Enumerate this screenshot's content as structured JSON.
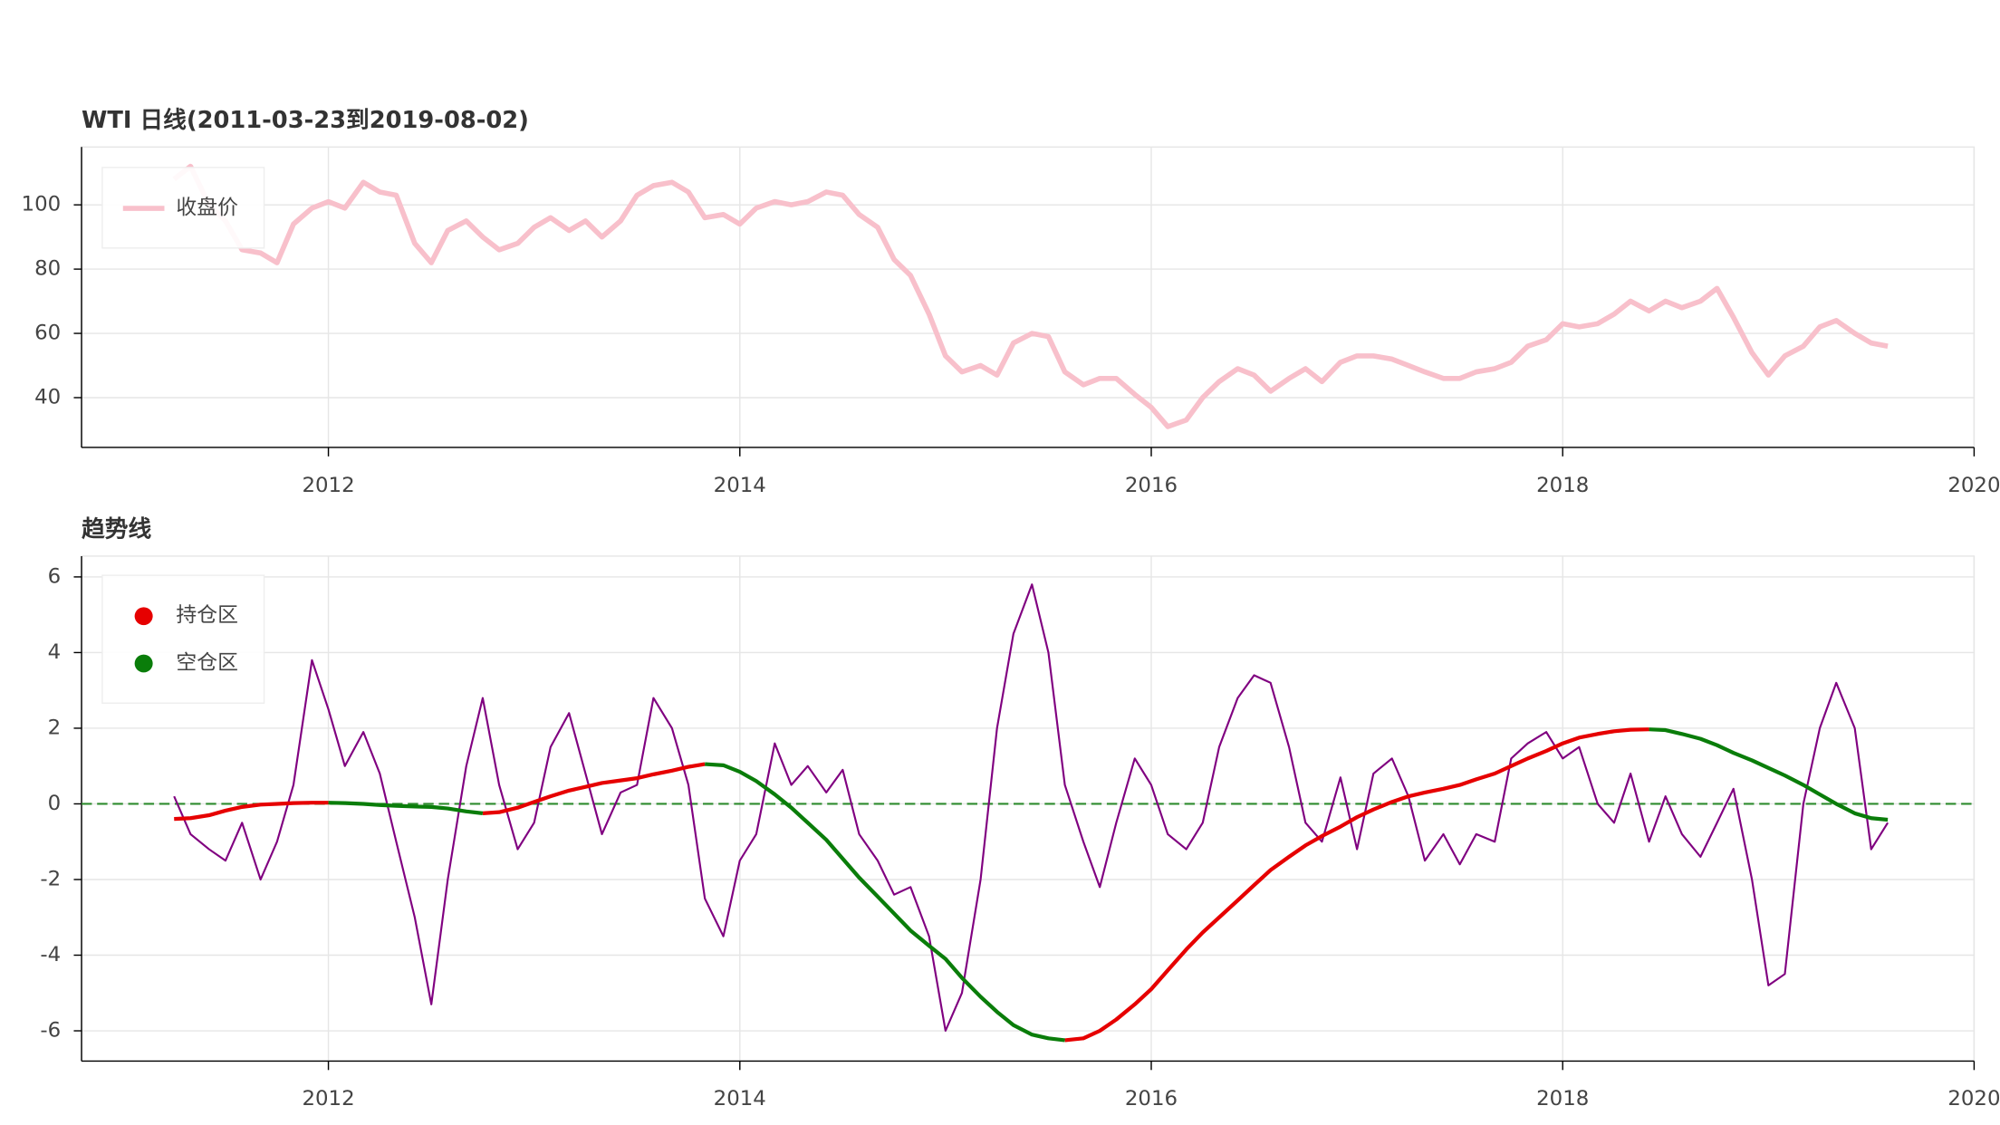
{
  "chart_data": [
    {
      "type": "line",
      "title": "WTI   日线(2011-03-23到2019-08-02)",
      "x": [
        2011.25,
        2011.33,
        2011.42,
        2011.5,
        2011.58,
        2011.67,
        2011.75,
        2011.83,
        2011.92,
        2012.0,
        2012.08,
        2012.17,
        2012.25,
        2012.33,
        2012.42,
        2012.5,
        2012.58,
        2012.67,
        2012.75,
        2012.83,
        2012.92,
        2013.0,
        2013.08,
        2013.17,
        2013.25,
        2013.33,
        2013.42,
        2013.5,
        2013.58,
        2013.67,
        2013.75,
        2013.83,
        2013.92,
        2014.0,
        2014.08,
        2014.17,
        2014.25,
        2014.33,
        2014.42,
        2014.5,
        2014.58,
        2014.67,
        2014.75,
        2014.83,
        2014.92,
        2015.0,
        2015.08,
        2015.17,
        2015.25,
        2015.33,
        2015.42,
        2015.5,
        2015.58,
        2015.67,
        2015.75,
        2015.83,
        2015.92,
        2016.0,
        2016.08,
        2016.17,
        2016.25,
        2016.33,
        2016.42,
        2016.5,
        2016.58,
        2016.67,
        2016.75,
        2016.83,
        2016.92,
        2017.0,
        2017.08,
        2017.17,
        2017.25,
        2017.33,
        2017.42,
        2017.5,
        2017.58,
        2017.67,
        2017.75,
        2017.83,
        2017.92,
        2018.0,
        2018.08,
        2018.17,
        2018.25,
        2018.33,
        2018.42,
        2018.5,
        2018.58,
        2018.67,
        2018.75,
        2018.83,
        2018.92,
        2019.0,
        2019.08,
        2019.17,
        2019.25,
        2019.33,
        2019.42,
        2019.5,
        2019.58
      ],
      "series": [
        {
          "name": "收盘价",
          "color": "#f8c0cb",
          "values": [
            108,
            112,
            100,
            95,
            86,
            85,
            82,
            94,
            99,
            101,
            99,
            107,
            104,
            103,
            88,
            82,
            92,
            95,
            90,
            86,
            88,
            93,
            96,
            92,
            95,
            90,
            95,
            103,
            106,
            107,
            104,
            96,
            97,
            94,
            99,
            101,
            100,
            101,
            104,
            103,
            97,
            93,
            83,
            78,
            66,
            53,
            48,
            50,
            47,
            57,
            60,
            59,
            48,
            44,
            46,
            46,
            41,
            37,
            31,
            33,
            40,
            45,
            49,
            47,
            42,
            46,
            49,
            45,
            51,
            53,
            53,
            52,
            50,
            48,
            46,
            46,
            48,
            49,
            51,
            56,
            58,
            63,
            62,
            63,
            66,
            70,
            67,
            70,
            68,
            70,
            74,
            65,
            54,
            47,
            53,
            56,
            62,
            64,
            60,
            57,
            56
          ]
        }
      ],
      "legend_marker": "line",
      "xlim": [
        2010.8,
        2020.0
      ],
      "xticks": [
        2012,
        2014,
        2016,
        2018,
        2020
      ],
      "ylim": [
        24.5,
        118
      ],
      "yticks": [
        40,
        60,
        80,
        100
      ],
      "grid": true
    },
    {
      "type": "line",
      "title": "趋势线",
      "x": [
        2011.25,
        2011.33,
        2011.42,
        2011.5,
        2011.58,
        2011.67,
        2011.75,
        2011.83,
        2011.92,
        2012.0,
        2012.08,
        2012.17,
        2012.25,
        2012.33,
        2012.42,
        2012.5,
        2012.58,
        2012.67,
        2012.75,
        2012.83,
        2012.92,
        2013.0,
        2013.08,
        2013.17,
        2013.25,
        2013.33,
        2013.42,
        2013.5,
        2013.58,
        2013.67,
        2013.75,
        2013.83,
        2013.92,
        2014.0,
        2014.08,
        2014.17,
        2014.25,
        2014.33,
        2014.42,
        2014.5,
        2014.58,
        2014.67,
        2014.75,
        2014.83,
        2014.92,
        2015.0,
        2015.08,
        2015.17,
        2015.25,
        2015.33,
        2015.42,
        2015.5,
        2015.58,
        2015.67,
        2015.75,
        2015.83,
        2015.92,
        2016.0,
        2016.08,
        2016.17,
        2016.25,
        2016.33,
        2016.42,
        2016.5,
        2016.58,
        2016.67,
        2016.75,
        2016.83,
        2016.92,
        2017.0,
        2017.08,
        2017.17,
        2017.25,
        2017.33,
        2017.42,
        2017.5,
        2017.58,
        2017.67,
        2017.75,
        2017.83,
        2017.92,
        2018.0,
        2018.08,
        2018.17,
        2018.25,
        2018.33,
        2018.42,
        2018.5,
        2018.58,
        2018.67,
        2018.75,
        2018.83,
        2018.92,
        2019.0,
        2019.08,
        2019.17,
        2019.25,
        2019.33,
        2019.42,
        2019.5,
        2019.58
      ],
      "series": [
        {
          "color": "#800080",
          "width": 1.5,
          "values": [
            0.2,
            -0.8,
            -1.2,
            -1.5,
            -0.5,
            -2.0,
            -1.0,
            0.5,
            3.8,
            2.5,
            1.0,
            1.9,
            0.8,
            -1.0,
            -3.0,
            -5.3,
            -2.0,
            1.0,
            2.8,
            0.5,
            -1.2,
            -0.5,
            1.5,
            2.4,
            0.8,
            -0.8,
            0.3,
            0.5,
            2.8,
            2.0,
            0.5,
            -2.5,
            -3.5,
            -1.5,
            -0.8,
            1.6,
            0.5,
            1.0,
            0.3,
            0.9,
            -0.8,
            -1.5,
            -2.4,
            -2.2,
            -3.5,
            -6.0,
            -5.0,
            -2.0,
            2.0,
            4.5,
            5.8,
            4.0,
            0.5,
            -1.0,
            -2.2,
            -0.5,
            1.2,
            0.5,
            -0.8,
            -1.2,
            -0.5,
            1.5,
            2.8,
            3.4,
            3.2,
            1.5,
            -0.5,
            -1.0,
            0.7,
            -1.2,
            0.8,
            1.2,
            0.2,
            -1.5,
            -0.8,
            -1.6,
            -0.8,
            -1.0,
            1.2,
            1.6,
            1.9,
            1.2,
            1.5,
            0.0,
            -0.5,
            0.8,
            -1.0,
            0.2,
            -0.8,
            -1.4,
            -0.5,
            0.4,
            -2.0,
            -4.8,
            -4.5,
            0.0,
            2.0,
            3.2,
            2.0,
            -1.2,
            -0.5
          ]
        },
        {
          "name": "持仓区",
          "color": "#e60000",
          "width": 3,
          "values": [
            -0.4,
            -0.38,
            -0.3,
            -0.18,
            -0.08,
            -0.02,
            0.0,
            0.02,
            0.03,
            0.03,
            null,
            null,
            null,
            null,
            null,
            null,
            null,
            null,
            -0.25,
            -0.22,
            -0.1,
            0.05,
            0.2,
            0.35,
            0.45,
            0.55,
            0.62,
            0.68,
            0.78,
            0.88,
            0.98,
            1.05,
            null,
            null,
            null,
            null,
            null,
            null,
            null,
            null,
            null,
            null,
            null,
            null,
            null,
            null,
            null,
            null,
            null,
            null,
            null,
            null,
            -6.25,
            -6.2,
            -6.0,
            -5.7,
            -5.3,
            -4.9,
            -4.4,
            -3.85,
            -3.4,
            -3.0,
            -2.55,
            -2.15,
            -1.75,
            -1.4,
            -1.1,
            -0.85,
            -0.6,
            -0.35,
            -0.15,
            0.05,
            0.2,
            0.3,
            0.4,
            0.5,
            0.65,
            0.8,
            1.0,
            1.2,
            1.4,
            1.6,
            1.75,
            1.85,
            1.92,
            1.96,
            1.97,
            null,
            null,
            null,
            null,
            null,
            null,
            null,
            null,
            null,
            null,
            null,
            null,
            null,
            null
          ]
        },
        {
          "name": "空仓区",
          "color": "#0a7d0a",
          "width": 3,
          "values": [
            null,
            null,
            null,
            null,
            null,
            null,
            null,
            null,
            null,
            0.03,
            0.02,
            0.0,
            -0.03,
            -0.05,
            -0.07,
            -0.08,
            -0.12,
            -0.2,
            -0.25,
            null,
            null,
            null,
            null,
            null,
            null,
            null,
            null,
            null,
            null,
            null,
            null,
            1.05,
            1.02,
            0.85,
            0.6,
            0.25,
            -0.1,
            -0.5,
            -0.95,
            -1.45,
            -1.95,
            -2.45,
            -2.9,
            -3.35,
            -3.75,
            -4.1,
            -4.6,
            -5.1,
            -5.5,
            -5.85,
            -6.1,
            -6.2,
            -6.25,
            null,
            null,
            null,
            null,
            null,
            null,
            null,
            null,
            null,
            null,
            null,
            null,
            null,
            null,
            null,
            null,
            null,
            null,
            null,
            null,
            null,
            null,
            null,
            null,
            null,
            null,
            null,
            null,
            null,
            null,
            null,
            null,
            null,
            1.97,
            1.95,
            1.85,
            1.72,
            1.55,
            1.35,
            1.15,
            0.95,
            0.75,
            0.5,
            0.25,
            0.0,
            -0.25,
            -0.38,
            -0.42
          ]
        }
      ],
      "hline": {
        "value": 0,
        "color": "#2e8b2e"
      },
      "legend_marker": "circle",
      "xlim": [
        2010.8,
        2020.0
      ],
      "xticks": [
        2012,
        2014,
        2016,
        2018,
        2020
      ],
      "ylim": [
        -6.8,
        6.55
      ],
      "yticks": [
        -6,
        -4,
        -2,
        0,
        2,
        4,
        6
      ],
      "grid": true
    }
  ]
}
